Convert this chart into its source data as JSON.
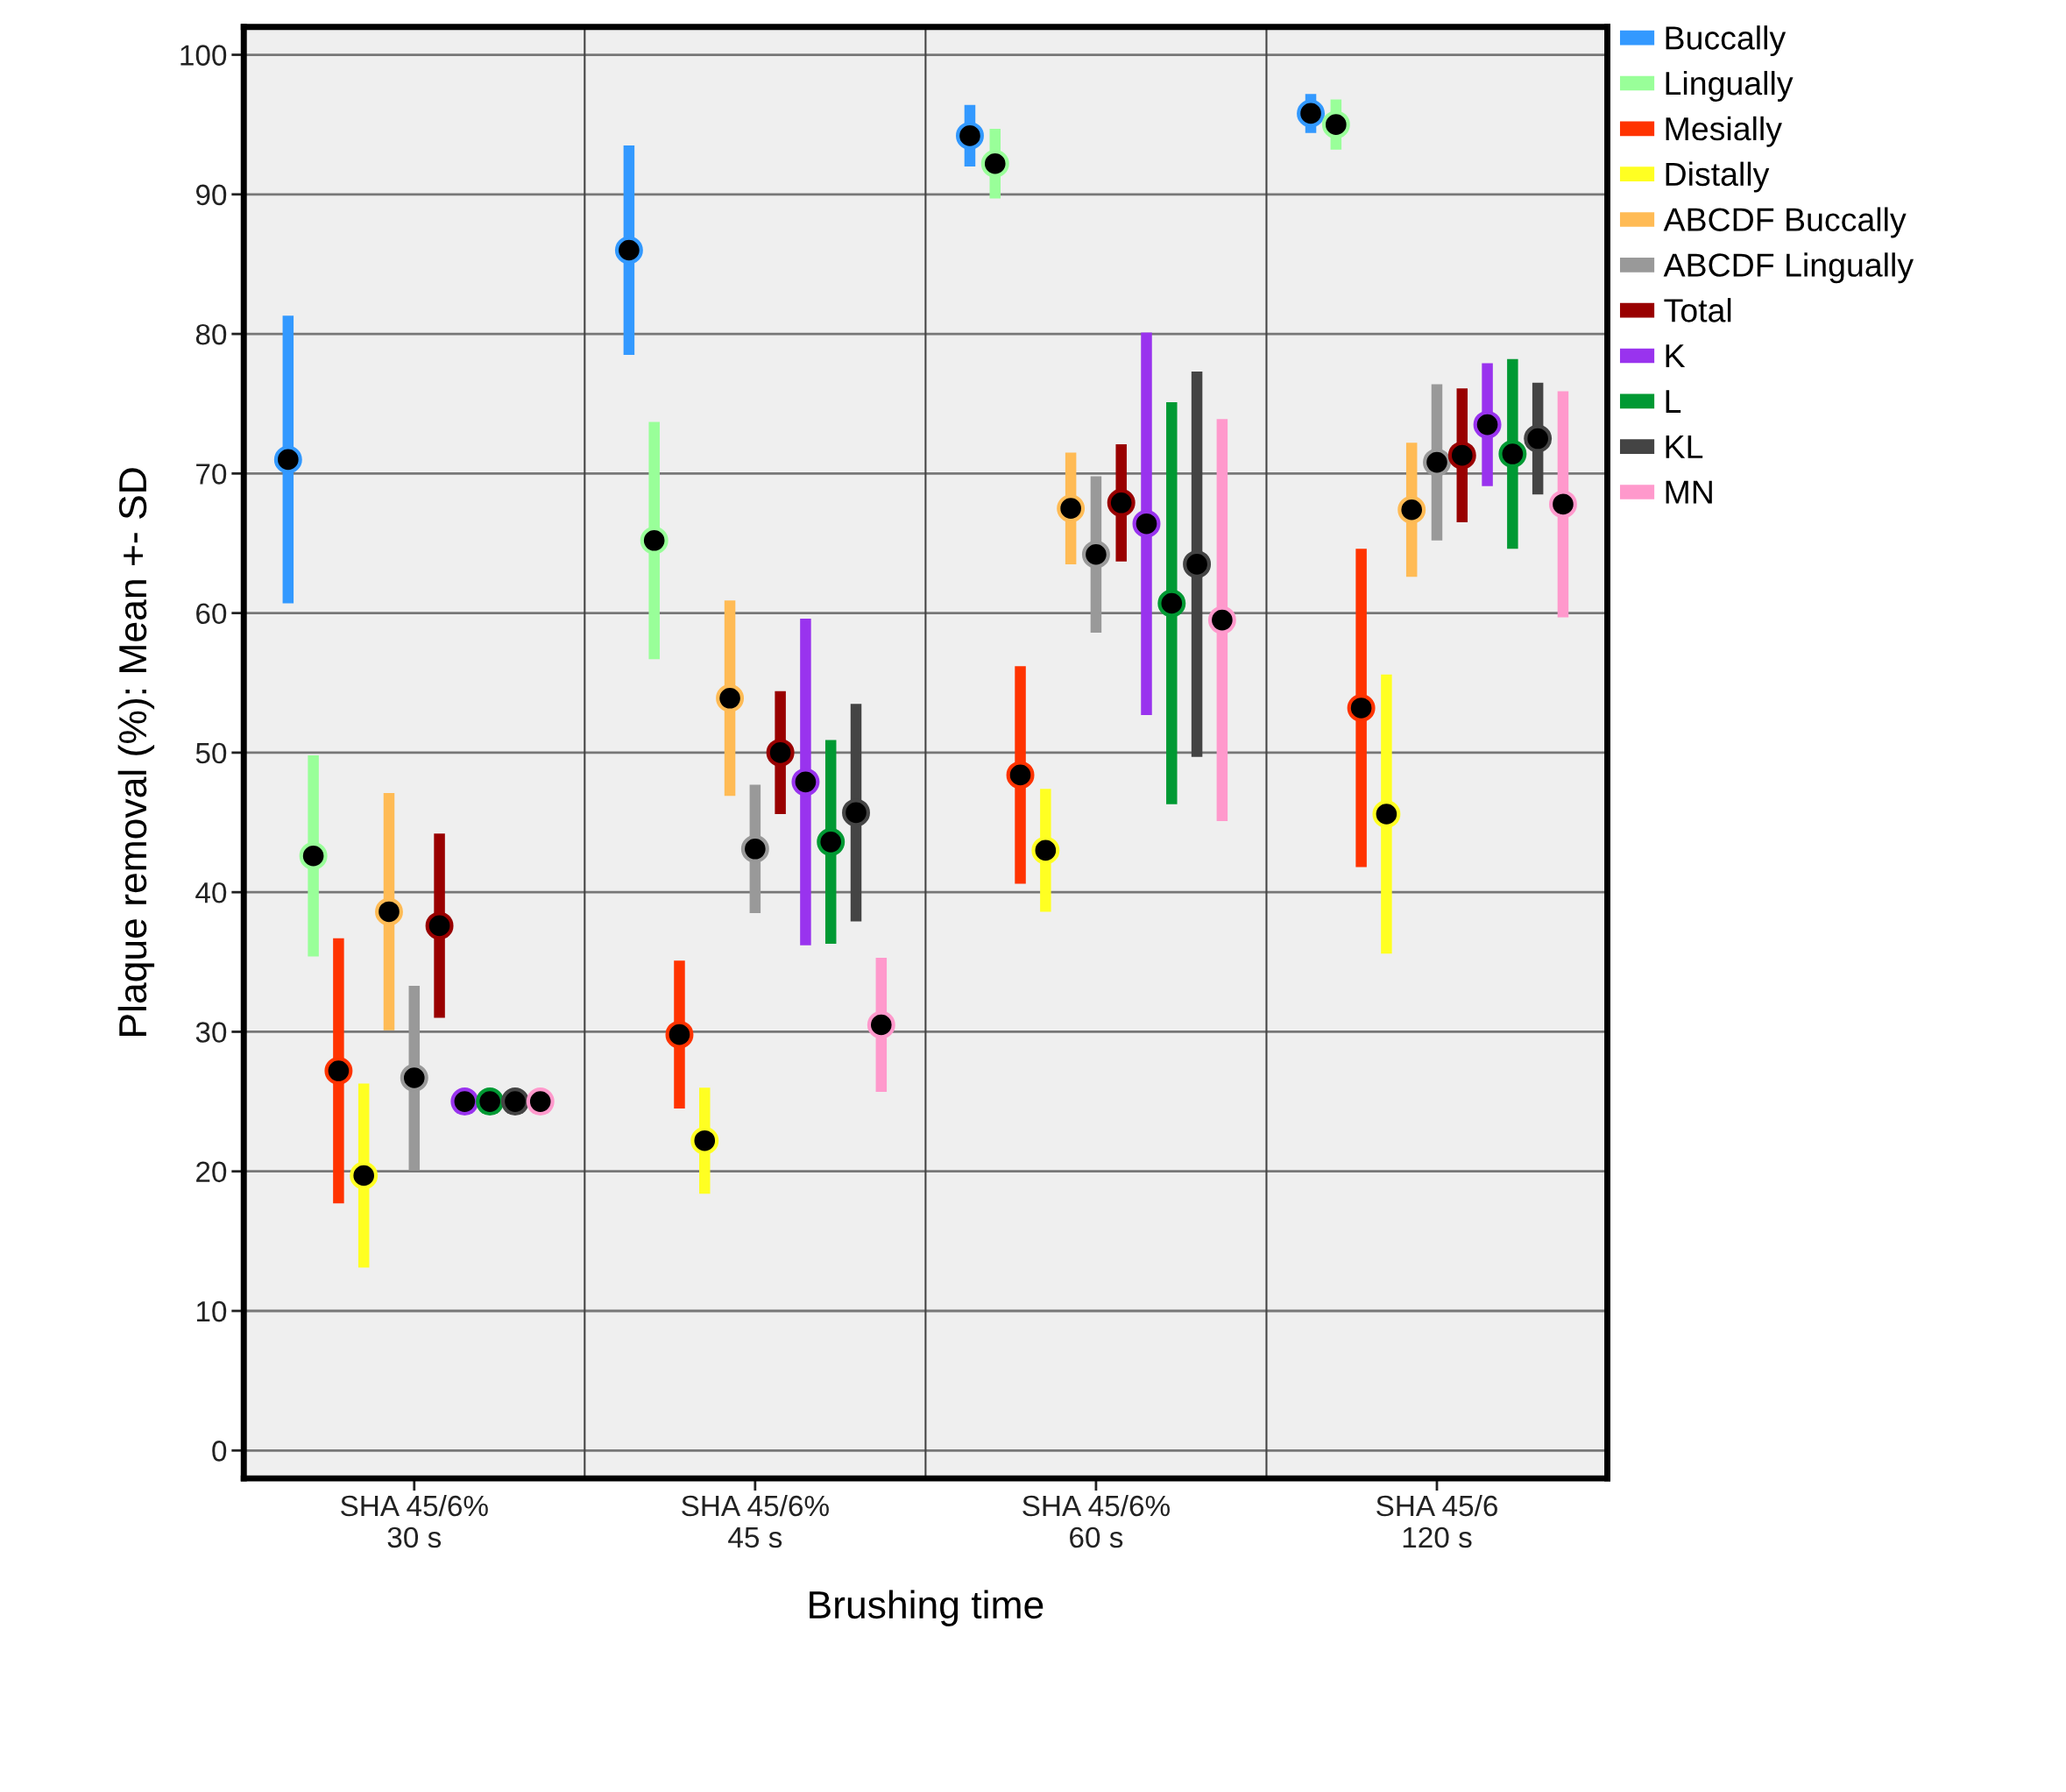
{
  "chart_data": {
    "type": "scatter",
    "xlabel": "Brushing time",
    "ylabel": "Plaque removal (%): Mean +- SD",
    "categories": [
      "SHA 45/6%\n30 s",
      "SHA 45/6%\n45 s",
      "SHA 45/6%\n60 s",
      "SHA 45/6\n120 s"
    ],
    "ylim": [
      -2,
      102
    ],
    "yticks": [
      0,
      10,
      20,
      30,
      40,
      50,
      60,
      70,
      80,
      90,
      100
    ],
    "grid": true,
    "legend": "top right",
    "marker": "circle",
    "series": [
      {
        "name": "Buccally",
        "color": "#3399ff",
        "values": [
          71,
          86.0,
          94.2,
          95.8
        ],
        "errors": [
          10.3,
          7.5,
          2.2,
          1.4
        ]
      },
      {
        "name": "Lingually",
        "color": "#99ff99",
        "values": [
          42.6,
          65.2,
          92.2,
          95.0
        ],
        "errors": [
          7.2,
          8.5,
          2.5,
          1.8
        ]
      },
      {
        "name": "Mesially",
        "color": "#ff3300",
        "values": [
          27.2,
          29.8,
          48.4,
          53.2
        ],
        "errors": [
          9.5,
          5.3,
          7.8,
          11.4
        ]
      },
      {
        "name": "Distally",
        "color": "#ffff22",
        "values": [
          19.7,
          22.2,
          43.0,
          45.6
        ],
        "errors": [
          6.6,
          3.8,
          4.4,
          10.0
        ]
      },
      {
        "name": "ABCDF Buccally",
        "color": "#ffbb55",
        "values": [
          38.6,
          53.9,
          67.5,
          67.4
        ],
        "errors": [
          8.5,
          7.0,
          4.0,
          4.8
        ]
      },
      {
        "name": "ABCDF Lingually",
        "color": "#999999",
        "values": [
          26.7,
          43.1,
          64.2,
          70.8
        ],
        "errors": [
          6.6,
          4.6,
          5.6,
          5.6
        ]
      },
      {
        "name": "Total",
        "color": "#990000",
        "values": [
          37.6,
          50.0,
          67.9,
          71.3
        ],
        "errors": [
          6.6,
          4.4,
          4.2,
          4.8
        ]
      },
      {
        "name": "K",
        "color": "#9933ee",
        "values": [
          25.0,
          47.9,
          66.4,
          73.5
        ],
        "errors": [
          null,
          11.7,
          13.7,
          4.4
        ]
      },
      {
        "name": "L",
        "color": "#009933",
        "values": [
          25.0,
          43.6,
          60.7,
          71.4
        ],
        "errors": [
          null,
          7.3,
          14.4,
          6.8
        ]
      },
      {
        "name": "KL",
        "color": "#444444",
        "values": [
          25.0,
          45.7,
          63.5,
          72.5
        ],
        "errors": [
          null,
          7.8,
          13.8,
          4.0
        ]
      },
      {
        "name": "MN",
        "color": "#ff99cc",
        "values": [
          25.0,
          30.5,
          59.5,
          67.8
        ],
        "errors": [
          null,
          4.8,
          14.4,
          8.1
        ]
      }
    ]
  }
}
